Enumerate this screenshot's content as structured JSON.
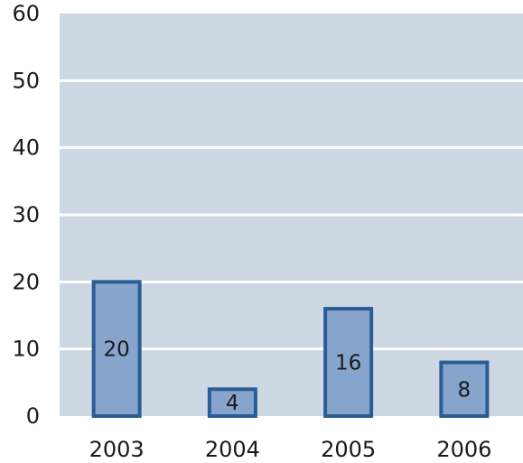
{
  "chart_data": {
    "type": "bar",
    "categories": [
      "2003",
      "2004",
      "2005",
      "2006"
    ],
    "values": [
      20,
      4,
      16,
      8
    ],
    "data_labels": [
      "20",
      "4",
      "16",
      "8"
    ],
    "title": "",
    "xlabel": "",
    "ylabel": "",
    "ylim": [
      0,
      60
    ],
    "yticks": [
      0,
      10,
      20,
      30,
      40,
      50,
      60
    ],
    "grid": true,
    "legend": "none",
    "colors": {
      "plot_background": "#cdd8e3",
      "gridline": "#ffffff",
      "bar_fill": "#87a4cc",
      "bar_stroke": "#2a5d95"
    }
  }
}
